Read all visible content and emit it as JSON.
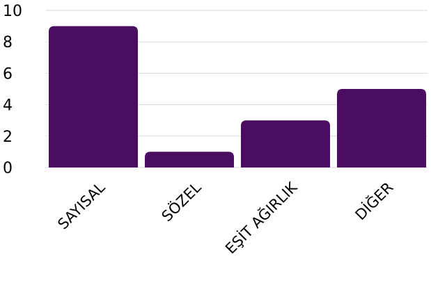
{
  "chart_data": {
    "type": "bar",
    "categories": [
      "SAYISAL",
      "SÖZEL",
      "EŞİT AĞIRLIK",
      "DİĞER"
    ],
    "values": [
      9,
      1,
      3,
      5
    ],
    "ylim": [
      0,
      10
    ],
    "yticks": [
      "0",
      "2",
      "4",
      "6",
      "8",
      "10"
    ],
    "grid": true,
    "legend": "none",
    "bar_color": "#4a0d62",
    "grid_color": "#d9d9d9"
  }
}
